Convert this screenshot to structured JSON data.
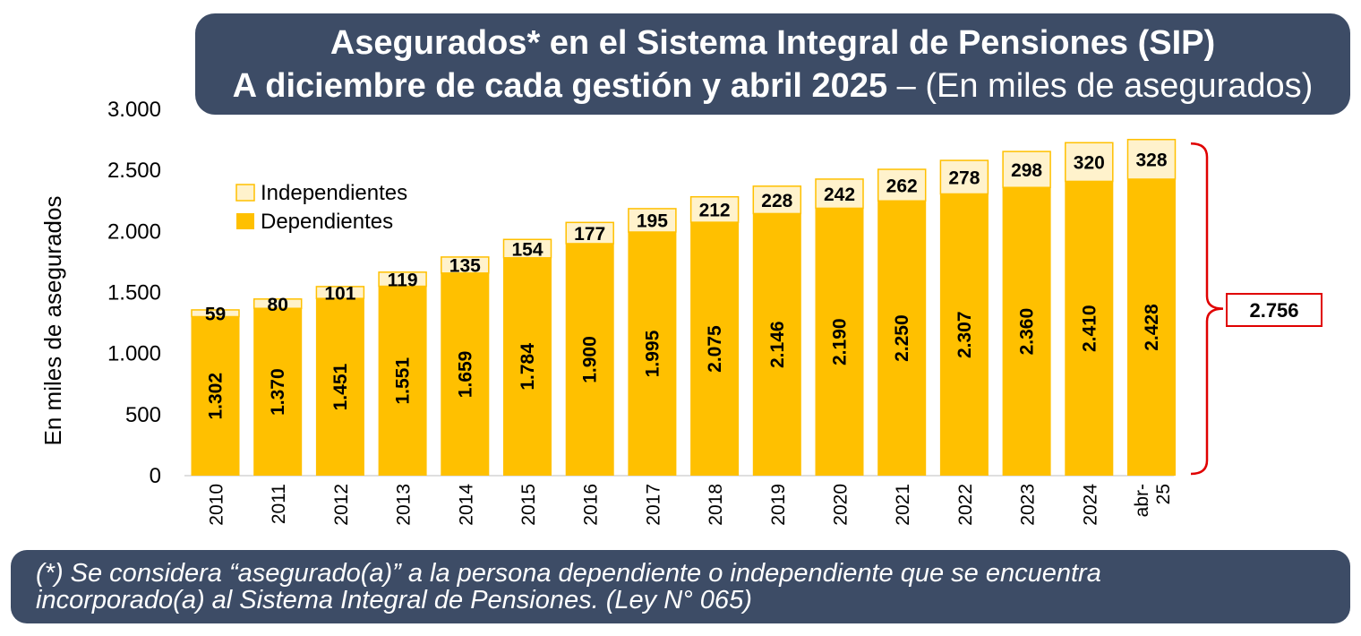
{
  "title": {
    "line1": "Asegurados* en el Sistema Integral de Pensiones (SIP)",
    "line2_bold": "A diciembre de cada gestión y abril 2025",
    "line2_rest": " – (En miles de asegurados)"
  },
  "footnote": {
    "line1": "(*) Se considera “asegurado(a)” a la persona dependiente o independiente que se encuentra",
    "line2": "incorporado(a) al Sistema Integral de Pensiones. (Ley N° 065)"
  },
  "colors": {
    "dependientes": "#ffc000",
    "independientes": "#fff2cc",
    "bar_outline": "#ffc000",
    "bracket": "#e00000",
    "title_bg": "#3d4c66"
  },
  "chart_data": {
    "type": "bar",
    "stacked": true,
    "categories": [
      "2010",
      "2011",
      "2012",
      "2013",
      "2014",
      "2015",
      "2016",
      "2017",
      "2018",
      "2019",
      "2020",
      "2021",
      "2022",
      "2023",
      "2024",
      "abr-25"
    ],
    "category_tick_labels": [
      [
        "2010"
      ],
      [
        "2011"
      ],
      [
        "2012"
      ],
      [
        "2013"
      ],
      [
        "2014"
      ],
      [
        "2015"
      ],
      [
        "2016"
      ],
      [
        "2017"
      ],
      [
        "2018"
      ],
      [
        "2019"
      ],
      [
        "2020"
      ],
      [
        "2021"
      ],
      [
        "2022"
      ],
      [
        "2023"
      ],
      [
        "2024"
      ],
      [
        "abr-",
        "25"
      ]
    ],
    "series": [
      {
        "name": "Dependientes",
        "values": [
          1302,
          1370,
          1451,
          1551,
          1659,
          1784,
          1900,
          1995,
          2075,
          2146,
          2190,
          2250,
          2307,
          2360,
          2410,
          2428
        ],
        "labels": [
          "1.302",
          "1.370",
          "1.451",
          "1.551",
          "1.659",
          "1.784",
          "1.900",
          "1.995",
          "2.075",
          "2.146",
          "2.190",
          "2.250",
          "2.307",
          "2.360",
          "2.410",
          "2.428"
        ]
      },
      {
        "name": "Independientes",
        "values": [
          59,
          80,
          101,
          119,
          135,
          154,
          177,
          195,
          212,
          228,
          242,
          262,
          278,
          298,
          320,
          328
        ],
        "labels": [
          "59",
          "80",
          "101",
          "119",
          "135",
          "154",
          "177",
          "195",
          "212",
          "228",
          "242",
          "262",
          "278",
          "298",
          "320",
          "328"
        ]
      }
    ],
    "ylabel": "En miles de asegurados",
    "ylim": [
      0,
      3000
    ],
    "yticks": [
      0,
      500,
      1000,
      1500,
      2000,
      2500,
      3000
    ],
    "ytick_labels": [
      "0",
      "500",
      "1.000",
      "1.500",
      "2.000",
      "2.500",
      "3.000"
    ],
    "legend": {
      "items": [
        "Independientes",
        "Dependientes"
      ],
      "position": "top-left"
    },
    "annotation": {
      "value": 2756,
      "label": "2.756",
      "applies_to": "abr-25"
    },
    "grid": false
  }
}
